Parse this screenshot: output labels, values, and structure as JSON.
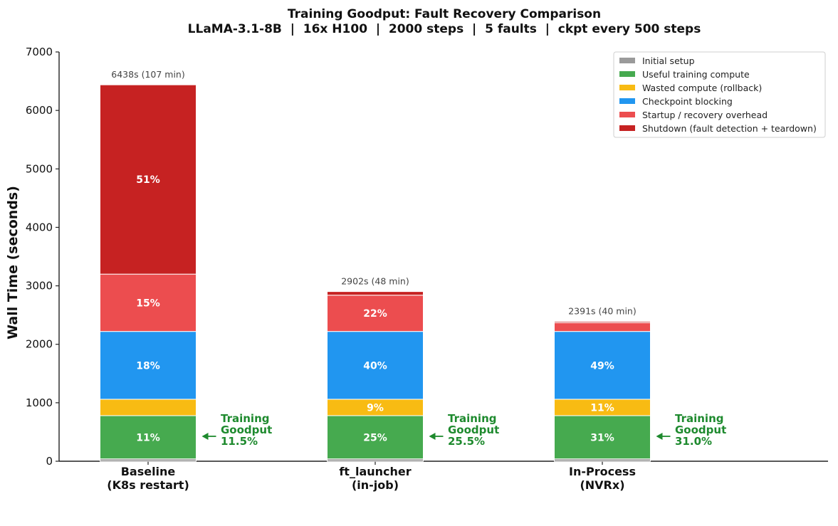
{
  "chart_data": {
    "type": "bar",
    "stacked": true,
    "title": "Training Goodput: Fault Recovery Comparison",
    "subtitle": "LLaMA-3.1-8B  |  16x H100  |  2000 steps  |  5 faults  |  ckpt every 500 steps",
    "ylabel": "Wall Time (seconds)",
    "ylim": [
      0,
      7000
    ],
    "yticks": [
      0,
      1000,
      2000,
      3000,
      4000,
      5000,
      6000,
      7000
    ],
    "grid": false,
    "legend_position": "top-right",
    "categories": [
      [
        "Baseline",
        "(K8s restart)"
      ],
      [
        "ft_launcher",
        "(in-job)"
      ],
      [
        "In-Process",
        "(NVRx)"
      ]
    ],
    "totals": [
      "6438s (107 min)",
      "2902s (48 min)",
      "2391s (40 min)"
    ],
    "series": [
      {
        "name": "Initial setup",
        "color": "#9a9a9a",
        "values": [
          40,
          40,
          40
        ],
        "labels": [
          "",
          "",
          ""
        ]
      },
      {
        "name": "Useful training compute",
        "color": "#46aa4f",
        "values": [
          740,
          740,
          740
        ],
        "labels": [
          "11%",
          "25%",
          "31%"
        ]
      },
      {
        "name": "Wasted compute (rollback)",
        "color": "#f8bb13",
        "values": [
          280,
          280,
          280
        ],
        "labels": [
          "",
          "9%",
          "11%"
        ]
      },
      {
        "name": "Checkpoint blocking",
        "color": "#2196f0",
        "values": [
          1160,
          1160,
          1160
        ],
        "labels": [
          "18%",
          "40%",
          "49%"
        ]
      },
      {
        "name": "Startup / recovery overhead",
        "color": "#ec4d4f",
        "values": [
          980,
          620,
          150
        ],
        "labels": [
          "15%",
          "22%",
          ""
        ]
      },
      {
        "name": "Shutdown (fault detection + teardown)",
        "color": "#c62222",
        "values": [
          3238,
          62,
          21
        ],
        "labels": [
          "51%",
          "",
          ""
        ]
      }
    ],
    "annotations": [
      {
        "bar": 0,
        "lines": [
          "Training",
          "Goodput",
          "11.5%"
        ]
      },
      {
        "bar": 1,
        "lines": [
          "Training",
          "Goodput",
          "25.5%"
        ]
      },
      {
        "bar": 2,
        "lines": [
          "Training",
          "Goodput",
          "31.0%"
        ]
      }
    ]
  }
}
